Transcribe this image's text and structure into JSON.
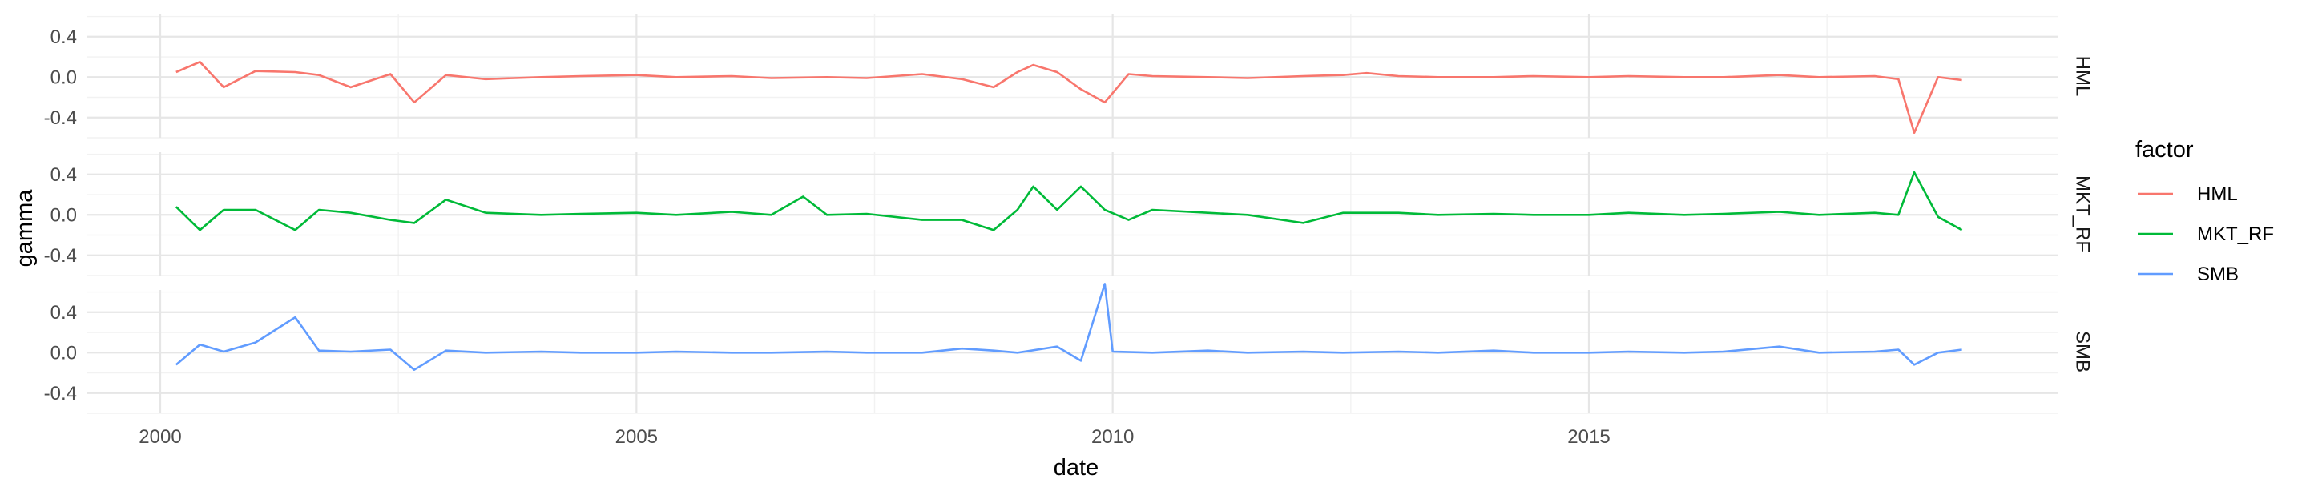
{
  "chart_data": {
    "type": "line",
    "xlabel": "date",
    "ylabel": "gamma",
    "x_ticks": [
      "2000",
      "2005",
      "2010",
      "2015"
    ],
    "x_range": [
      "2000-01-01",
      "2018-12-31"
    ],
    "y_ticks": [
      "0.4",
      "0.0",
      "-0.4"
    ],
    "ylim": [
      -0.6,
      0.62
    ],
    "grid": true,
    "facets": "rows by factor",
    "legend": {
      "title": "factor",
      "position": "right"
    },
    "series": [
      {
        "name": "HML",
        "color": "#F8766D",
        "x": [
          "2000-03",
          "2000-06",
          "2000-09",
          "2001-01",
          "2001-06",
          "2001-09",
          "2002-01",
          "2002-06",
          "2002-09",
          "2003-01",
          "2003-06",
          "2004-01",
          "2004-06",
          "2005-01",
          "2005-06",
          "2006-01",
          "2006-06",
          "2007-01",
          "2007-06",
          "2008-01",
          "2008-06",
          "2008-10",
          "2009-01",
          "2009-03",
          "2009-06",
          "2009-09",
          "2009-12",
          "2010-03",
          "2010-06",
          "2011-01",
          "2011-06",
          "2012-01",
          "2012-06",
          "2012-09",
          "2013-01",
          "2013-06",
          "2014-01",
          "2014-06",
          "2015-01",
          "2015-06",
          "2016-01",
          "2016-06",
          "2017-01",
          "2017-06",
          "2018-01",
          "2018-04",
          "2018-06",
          "2018-09",
          "2018-12"
        ],
        "values": [
          0.05,
          0.15,
          -0.1,
          0.06,
          0.05,
          0.02,
          -0.1,
          0.03,
          -0.25,
          0.02,
          -0.02,
          0.0,
          0.01,
          0.02,
          0.0,
          0.01,
          -0.01,
          0.0,
          -0.01,
          0.03,
          -0.02,
          -0.1,
          0.05,
          0.12,
          0.05,
          -0.12,
          -0.25,
          0.03,
          0.01,
          0.0,
          -0.01,
          0.01,
          0.02,
          0.04,
          0.01,
          0.0,
          0.0,
          0.01,
          0.0,
          0.01,
          0.0,
          0.0,
          0.02,
          0.0,
          0.01,
          -0.02,
          -0.55,
          0.0,
          -0.03
        ]
      },
      {
        "name": "MKT_RF",
        "color": "#00BA38",
        "x": [
          "2000-03",
          "2000-06",
          "2000-09",
          "2001-01",
          "2001-06",
          "2001-09",
          "2002-01",
          "2002-06",
          "2002-09",
          "2003-01",
          "2003-06",
          "2004-01",
          "2004-06",
          "2005-01",
          "2005-06",
          "2006-01",
          "2006-06",
          "2006-10",
          "2007-01",
          "2007-06",
          "2008-01",
          "2008-06",
          "2008-10",
          "2009-01",
          "2009-03",
          "2009-06",
          "2009-09",
          "2009-12",
          "2010-03",
          "2010-06",
          "2011-01",
          "2011-06",
          "2012-01",
          "2012-06",
          "2013-01",
          "2013-06",
          "2014-01",
          "2014-06",
          "2015-01",
          "2015-06",
          "2016-01",
          "2016-06",
          "2017-01",
          "2017-06",
          "2018-01",
          "2018-04",
          "2018-06",
          "2018-09",
          "2018-12"
        ],
        "values": [
          0.08,
          -0.15,
          0.05,
          0.05,
          -0.15,
          0.05,
          0.02,
          -0.05,
          -0.08,
          0.15,
          0.02,
          0.0,
          0.01,
          0.02,
          0.0,
          0.03,
          0.0,
          0.18,
          0.0,
          0.01,
          -0.05,
          -0.05,
          -0.15,
          0.05,
          0.28,
          0.05,
          0.28,
          0.05,
          -0.05,
          0.05,
          0.02,
          0.0,
          -0.08,
          0.02,
          0.02,
          0.0,
          0.01,
          0.0,
          0.0,
          0.02,
          0.0,
          0.01,
          0.03,
          0.0,
          0.02,
          0.0,
          0.42,
          -0.02,
          -0.15
        ]
      },
      {
        "name": "SMB",
        "color": "#619CFF",
        "x": [
          "2000-03",
          "2000-06",
          "2000-09",
          "2001-01",
          "2001-06",
          "2001-09",
          "2002-01",
          "2002-06",
          "2002-09",
          "2003-01",
          "2003-06",
          "2004-01",
          "2004-06",
          "2005-01",
          "2005-06",
          "2006-01",
          "2006-06",
          "2007-01",
          "2007-06",
          "2008-01",
          "2008-06",
          "2008-10",
          "2009-01",
          "2009-06",
          "2009-09",
          "2009-12",
          "2010-01",
          "2010-06",
          "2011-01",
          "2011-06",
          "2012-01",
          "2012-06",
          "2013-01",
          "2013-06",
          "2014-01",
          "2014-06",
          "2015-01",
          "2015-06",
          "2016-01",
          "2016-06",
          "2017-01",
          "2017-06",
          "2018-01",
          "2018-04",
          "2018-06",
          "2018-09",
          "2018-12"
        ],
        "values": [
          -0.12,
          0.08,
          0.01,
          0.1,
          0.35,
          0.02,
          0.01,
          0.03,
          -0.17,
          0.02,
          0.0,
          0.01,
          0.0,
          0.0,
          0.01,
          0.0,
          0.0,
          0.01,
          0.0,
          0.0,
          0.04,
          0.02,
          0.0,
          0.06,
          -0.08,
          0.68,
          0.01,
          0.0,
          0.02,
          0.0,
          0.01,
          0.0,
          0.01,
          0.0,
          0.02,
          0.0,
          0.0,
          0.01,
          0.0,
          0.01,
          0.06,
          0.0,
          0.01,
          0.03,
          -0.12,
          0.0,
          0.03
        ]
      }
    ]
  }
}
